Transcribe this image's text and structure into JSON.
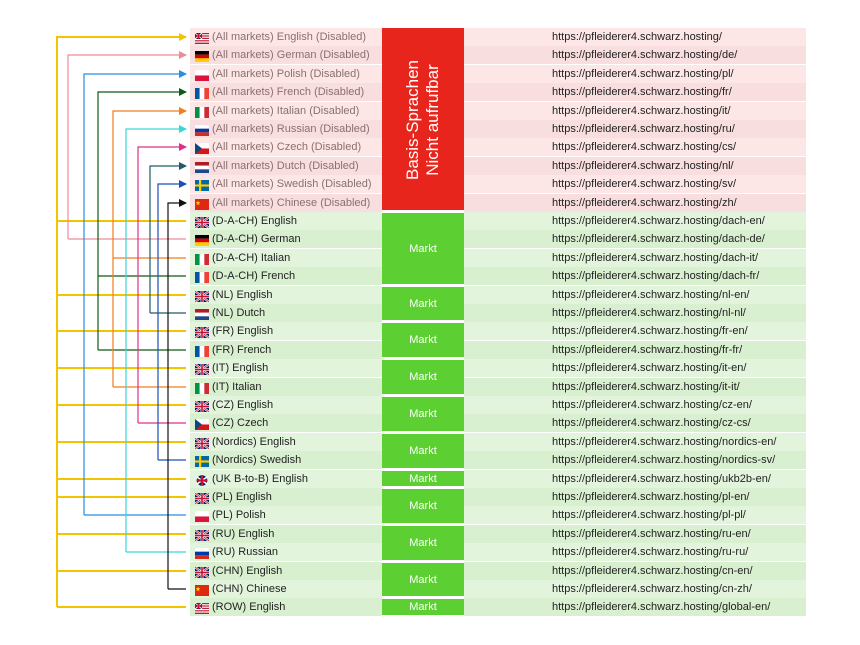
{
  "basis_block": {
    "line1": "Basis-Sprachen",
    "line2": "Nicht aufrufbar"
  },
  "market_label": "Markt",
  "rows": [
    {
      "label": "(All markets) English (Disabled)",
      "url": "https://pfleiderer4.schwarz.hosting/",
      "flag": "uk-us",
      "status": "disabled"
    },
    {
      "label": "(All markets) German (Disabled)",
      "url": "https://pfleiderer4.schwarz.hosting/de/",
      "flag": "de",
      "status": "disabled"
    },
    {
      "label": "(All markets) Polish (Disabled)",
      "url": "https://pfleiderer4.schwarz.hosting/pl/",
      "flag": "pl",
      "status": "disabled"
    },
    {
      "label": "(All markets) French (Disabled)",
      "url": "https://pfleiderer4.schwarz.hosting/fr/",
      "flag": "fr",
      "status": "disabled"
    },
    {
      "label": "(All markets) Italian (Disabled)",
      "url": "https://pfleiderer4.schwarz.hosting/it/",
      "flag": "it",
      "status": "disabled"
    },
    {
      "label": "(All markets) Russian (Disabled)",
      "url": "https://pfleiderer4.schwarz.hosting/ru/",
      "flag": "ru",
      "status": "disabled"
    },
    {
      "label": "(All markets) Czech (Disabled)",
      "url": "https://pfleiderer4.schwarz.hosting/cs/",
      "flag": "cz",
      "status": "disabled"
    },
    {
      "label": "(All markets) Dutch (Disabled)",
      "url": "https://pfleiderer4.schwarz.hosting/nl/",
      "flag": "nl",
      "status": "disabled"
    },
    {
      "label": "(All markets) Swedish (Disabled)",
      "url": "https://pfleiderer4.schwarz.hosting/sv/",
      "flag": "se",
      "status": "disabled"
    },
    {
      "label": "(All markets) Chinese (Disabled)",
      "url": "https://pfleiderer4.schwarz.hosting/zh/",
      "flag": "cn",
      "status": "disabled"
    },
    {
      "label": "(D-A-CH) English",
      "url": "https://pfleiderer4.schwarz.hosting/dach-en/",
      "flag": "uk",
      "status": "market"
    },
    {
      "label": "(D-A-CH) German",
      "url": "https://pfleiderer4.schwarz.hosting/dach-de/",
      "flag": "de",
      "status": "market"
    },
    {
      "label": "(D-A-CH) Italian",
      "url": "https://pfleiderer4.schwarz.hosting/dach-it/",
      "flag": "it",
      "status": "market"
    },
    {
      "label": "(D-A-CH) French",
      "url": "https://pfleiderer4.schwarz.hosting/dach-fr/",
      "flag": "fr",
      "status": "market"
    },
    {
      "label": "(NL) English",
      "url": "https://pfleiderer4.schwarz.hosting/nl-en/",
      "flag": "uk",
      "status": "market"
    },
    {
      "label": "(NL) Dutch",
      "url": "https://pfleiderer4.schwarz.hosting/nl-nl/",
      "flag": "nl",
      "status": "market"
    },
    {
      "label": "(FR) English",
      "url": "https://pfleiderer4.schwarz.hosting/fr-en/",
      "flag": "uk",
      "status": "market"
    },
    {
      "label": "(FR) French",
      "url": "https://pfleiderer4.schwarz.hosting/fr-fr/",
      "flag": "fr",
      "status": "market"
    },
    {
      "label": "(IT) English",
      "url": "https://pfleiderer4.schwarz.hosting/it-en/",
      "flag": "uk",
      "status": "market"
    },
    {
      "label": "(IT) Italian",
      "url": "https://pfleiderer4.schwarz.hosting/it-it/",
      "flag": "it",
      "status": "market"
    },
    {
      "label": "(CZ) English",
      "url": "https://pfleiderer4.schwarz.hosting/cz-en/",
      "flag": "uk",
      "status": "market"
    },
    {
      "label": "(CZ) Czech",
      "url": "https://pfleiderer4.schwarz.hosting/cz-cs/",
      "flag": "cz",
      "status": "market"
    },
    {
      "label": "(Nordics) English",
      "url": "https://pfleiderer4.schwarz.hosting/nordics-en/",
      "flag": "uk",
      "status": "market"
    },
    {
      "label": "(Nordics) Swedish",
      "url": "https://pfleiderer4.schwarz.hosting/nordics-sv/",
      "flag": "se",
      "status": "market"
    },
    {
      "label": "(UK B-to-B) English",
      "url": "https://pfleiderer4.schwarz.hosting/ukb2b-en/",
      "flag": "uk-round",
      "status": "market"
    },
    {
      "label": "(PL) English",
      "url": "https://pfleiderer4.schwarz.hosting/pl-en/",
      "flag": "uk",
      "status": "market"
    },
    {
      "label": "(PL) Polish",
      "url": "https://pfleiderer4.schwarz.hosting/pl-pl/",
      "flag": "pl",
      "status": "market"
    },
    {
      "label": "(RU) English",
      "url": "https://pfleiderer4.schwarz.hosting/ru-en/",
      "flag": "uk",
      "status": "market"
    },
    {
      "label": "(RU) Russian",
      "url": "https://pfleiderer4.schwarz.hosting/ru-ru/",
      "flag": "ru",
      "status": "market"
    },
    {
      "label": "(CHN) English",
      "url": "https://pfleiderer4.schwarz.hosting/cn-en/",
      "flag": "uk",
      "status": "market"
    },
    {
      "label": "(CHN) Chinese",
      "url": "https://pfleiderer4.schwarz.hosting/cn-zh/",
      "flag": "cn",
      "status": "market"
    },
    {
      "label": "(ROW) English",
      "url": "https://pfleiderer4.schwarz.hosting/global-en/",
      "flag": "uk-us",
      "status": "market"
    }
  ],
  "market_groups": [
    {
      "name": "D-A-CH",
      "first": 10,
      "last": 13
    },
    {
      "name": "NL",
      "first": 14,
      "last": 15
    },
    {
      "name": "FR",
      "first": 16,
      "last": 17
    },
    {
      "name": "IT",
      "first": 18,
      "last": 19
    },
    {
      "name": "CZ",
      "first": 20,
      "last": 21
    },
    {
      "name": "Nordics",
      "first": 22,
      "last": 23
    },
    {
      "name": "UK B-to-B",
      "first": 24,
      "last": 24
    },
    {
      "name": "PL",
      "first": 25,
      "last": 26
    },
    {
      "name": "RU",
      "first": 27,
      "last": 28
    },
    {
      "name": "CHN",
      "first": 29,
      "last": 30
    },
    {
      "name": "ROW",
      "first": 31,
      "last": 31
    }
  ],
  "connectors": [
    {
      "base": 0,
      "color": "#f5c400",
      "sources": [
        10,
        14,
        16,
        18,
        20,
        22,
        24,
        25,
        27,
        29,
        31
      ]
    },
    {
      "base": 1,
      "color": "#f08a98",
      "sources": [
        11
      ]
    },
    {
      "base": 2,
      "color": "#2a8ee0",
      "sources": [
        26
      ]
    },
    {
      "base": 3,
      "color": "#0f5c14",
      "sources": [
        13,
        17
      ]
    },
    {
      "base": 4,
      "color": "#f07f1c",
      "sources": [
        12,
        19
      ]
    },
    {
      "base": 5,
      "color": "#3dd6d6",
      "sources": [
        28
      ]
    },
    {
      "base": 6,
      "color": "#e0318a",
      "sources": [
        21
      ]
    },
    {
      "base": 7,
      "color": "#1f5c68",
      "sources": [
        15
      ]
    },
    {
      "base": 8,
      "color": "#1a50b8",
      "sources": [
        23
      ]
    },
    {
      "base": 9,
      "color": "#111111",
      "sources": [
        30
      ]
    }
  ]
}
